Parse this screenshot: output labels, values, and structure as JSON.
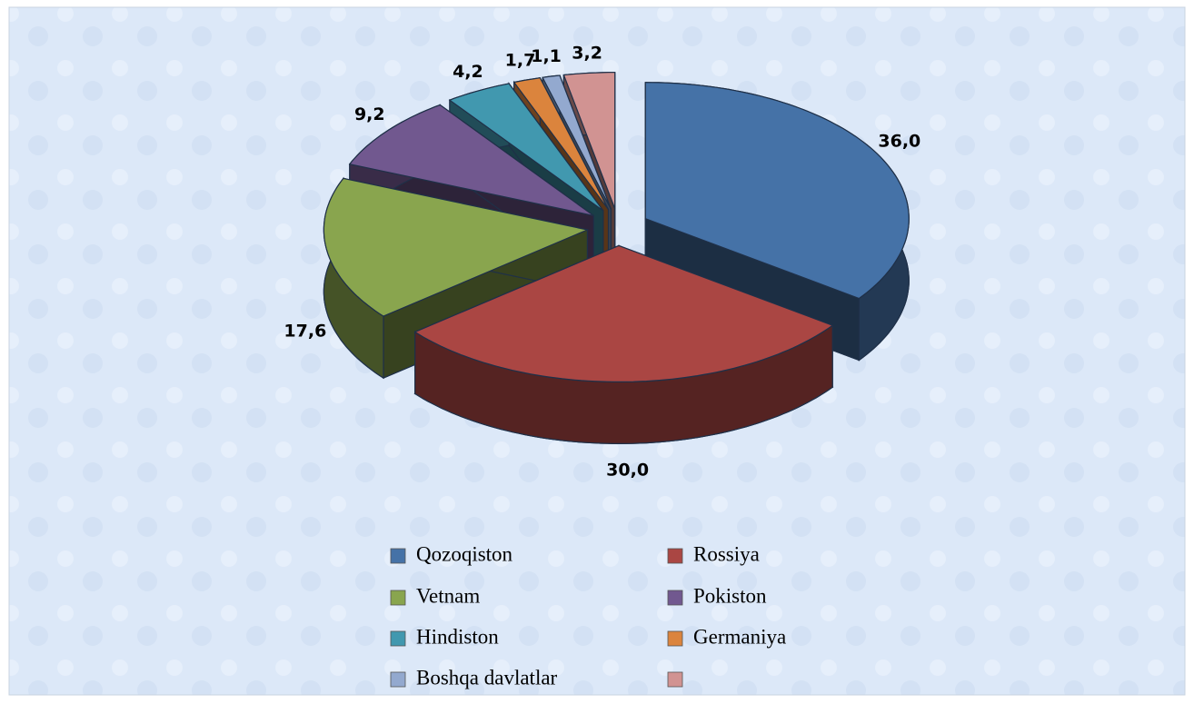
{
  "chart_data": {
    "type": "pie3d",
    "categories": [
      "Qozoqiston",
      "Rossiya",
      "Vetnam",
      "Pokiston",
      "Hindiston",
      "Germaniya",
      "Boshqa davlatlar",
      null
    ],
    "values": [
      36.0,
      30.0,
      17.6,
      9.2,
      4.2,
      1.7,
      1.1,
      3.2
    ],
    "value_labels": [
      "36,0",
      "30,0",
      "17,6",
      "9,2",
      "4,2",
      "1,7",
      "1,1",
      "3,2"
    ],
    "colors": [
      "#4572a7",
      "#aa4643",
      "#89a54e",
      "#71588f",
      "#4198af",
      "#db843d",
      "#93a9cf",
      "#d19392"
    ],
    "legend": "bottom"
  }
}
